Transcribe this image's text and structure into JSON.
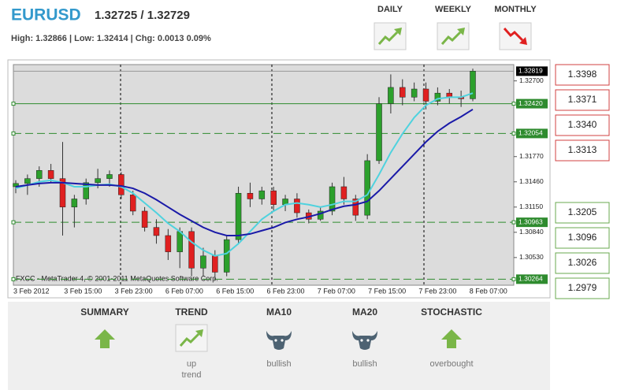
{
  "header": {
    "symbol": "EURUSD",
    "quote": "1.32725 / 1.32729",
    "stats": "High: 1.32866 | Low: 1.32414 | Chg: 0.0013 0.09%"
  },
  "timeframes": [
    {
      "label": "DAILY",
      "trend": "up"
    },
    {
      "label": "WEEKLY",
      "trend": "up"
    },
    {
      "label": "MONTHLY",
      "trend": "down"
    }
  ],
  "chart_data": {
    "type": "candlestick",
    "watermark": "FXCC - MetaTrader 4, © 2001-2011 MetaQuotes Software Corp.",
    "xtick_labels": [
      "3 Feb 2012",
      "3 Feb 15:00",
      "3 Feb 23:00",
      "6 Feb 07:00",
      "6 Feb 15:00",
      "6 Feb 23:00",
      "7 Feb 07:00",
      "7 Feb 15:00",
      "7 Feb 23:00",
      "8 Feb 07:00"
    ],
    "open": [
      1.314,
      1.3144,
      1.315,
      1.316,
      1.315,
      1.3115,
      1.3125,
      1.3145,
      1.315,
      1.3155,
      1.313,
      1.311,
      1.309,
      1.308,
      1.306,
      1.3085,
      1.304,
      1.3055,
      1.3035,
      1.3075,
      1.3132,
      1.3125,
      1.3135,
      1.3118,
      1.3125,
      1.3108,
      1.31,
      1.311,
      1.314,
      1.3125,
      1.3105,
      1.3172,
      1.3242,
      1.3262,
      1.325,
      1.326,
      1.3245,
      1.3255,
      1.325,
      1.3248
    ],
    "high": [
      1.3148,
      1.3155,
      1.3165,
      1.3168,
      1.3195,
      1.313,
      1.315,
      1.3162,
      1.316,
      1.3158,
      1.3135,
      1.3115,
      1.31,
      1.3088,
      1.309,
      1.309,
      1.3065,
      1.3062,
      1.308,
      1.314,
      1.3145,
      1.314,
      1.314,
      1.313,
      1.3132,
      1.3112,
      1.3115,
      1.3145,
      1.3152,
      1.313,
      1.318,
      1.325,
      1.3278,
      1.3272,
      1.3268,
      1.3268,
      1.3262,
      1.326,
      1.3258,
      1.3285
    ],
    "low": [
      1.3132,
      1.313,
      1.314,
      1.3145,
      1.308,
      1.309,
      1.3118,
      1.3138,
      1.314,
      1.3125,
      1.3105,
      1.3085,
      1.307,
      1.305,
      1.304,
      1.303,
      1.303,
      1.3025,
      1.303,
      1.307,
      1.3115,
      1.3118,
      1.311,
      1.311,
      1.3102,
      1.3095,
      1.3098,
      1.3105,
      1.3118,
      1.3098,
      1.31,
      1.3168,
      1.323,
      1.324,
      1.3245,
      1.3235,
      1.324,
      1.3242,
      1.3238,
      1.3245
    ],
    "close": [
      1.3144,
      1.315,
      1.316,
      1.315,
      1.3115,
      1.3125,
      1.3145,
      1.315,
      1.3155,
      1.313,
      1.311,
      1.309,
      1.308,
      1.306,
      1.3085,
      1.304,
      1.3055,
      1.3035,
      1.3075,
      1.3132,
      1.3125,
      1.3135,
      1.3118,
      1.3125,
      1.3108,
      1.31,
      1.311,
      1.314,
      1.3125,
      1.3105,
      1.3172,
      1.3242,
      1.3262,
      1.325,
      1.326,
      1.3245,
      1.3255,
      1.325,
      1.3248,
      1.3282
    ],
    "up_color": "#2ca02c",
    "down_color": "#e02020",
    "series": [
      {
        "color": "#4fd2de",
        "values": [
          1.3138,
          1.3142,
          1.3146,
          1.3148,
          1.3145,
          1.314,
          1.314,
          1.3142,
          1.3143,
          1.314,
          1.3132,
          1.312,
          1.3108,
          1.3095,
          1.3085,
          1.3072,
          1.3062,
          1.3055,
          1.3058,
          1.307,
          1.3085,
          1.31,
          1.311,
          1.3118,
          1.312,
          1.3118,
          1.3115,
          1.3118,
          1.3122,
          1.3122,
          1.313,
          1.3155,
          1.3182,
          1.3205,
          1.3225,
          1.324,
          1.3248,
          1.325,
          1.325,
          1.3255
        ]
      },
      {
        "color": "#1a1aa8",
        "values": [
          1.314,
          1.3142,
          1.3144,
          1.3145,
          1.3145,
          1.3144,
          1.3143,
          1.3142,
          1.3142,
          1.3141,
          1.3138,
          1.3132,
          1.3124,
          1.3115,
          1.3106,
          1.3098,
          1.309,
          1.3084,
          1.308,
          1.308,
          1.3082,
          1.3086,
          1.309,
          1.3096,
          1.31,
          1.3103,
          1.3107,
          1.3112,
          1.3116,
          1.3118,
          1.3122,
          1.3135,
          1.315,
          1.3165,
          1.318,
          1.3195,
          1.3208,
          1.3218,
          1.3226,
          1.3235
        ]
      }
    ],
    "ylim": [
      1.3019,
      1.329
    ],
    "yticks": [
      {
        "value": 1.327,
        "label": "1.32700"
      },
      {
        "value": 1.3177,
        "label": "1.31770"
      },
      {
        "value": 1.3146,
        "label": "1.31460"
      },
      {
        "value": 1.3115,
        "label": "1.31150"
      },
      {
        "value": 1.3084,
        "label": "1.30840"
      },
      {
        "value": 1.3053,
        "label": "1.30530"
      }
    ],
    "levels": [
      {
        "value": 1.3242,
        "label": "1.32420",
        "line": "solid"
      },
      {
        "value": 1.32054,
        "line": "dashed"
      },
      {
        "value": 1.30963,
        "line": "dashed"
      },
      {
        "value": 1.30264,
        "line": "dashed"
      }
    ],
    "level_color": "#2e8b2e",
    "last_price": 1.32819
  },
  "pivots": {
    "resistance": [
      "1.3398",
      "1.3371",
      "1.3340",
      "1.3313"
    ],
    "support": [
      "1.3205",
      "1.3096",
      "1.3026",
      "1.2979"
    ]
  },
  "summary": [
    {
      "title": "SUMMARY",
      "icon": "arrow-up"
    },
    {
      "title": "TREND",
      "icon": "chart-up",
      "text": [
        "up",
        "trend"
      ]
    },
    {
      "title": "MA10",
      "icon": "bull",
      "text": [
        "bullish"
      ]
    },
    {
      "title": "MA20",
      "icon": "bull",
      "text": [
        "bullish"
      ]
    },
    {
      "title": "STOCHASTIC",
      "icon": "arrow-up",
      "text": [
        "overbought"
      ]
    }
  ]
}
